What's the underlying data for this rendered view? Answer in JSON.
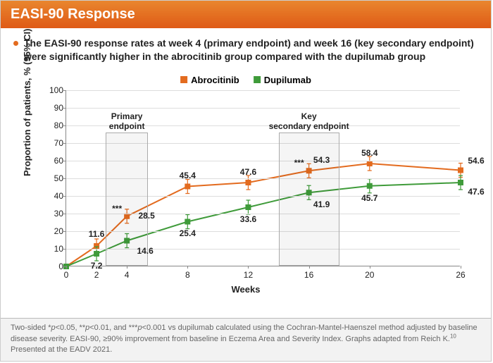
{
  "header": {
    "title": "EASI-90 Response"
  },
  "bullet": {
    "text": "The EASI-90 response rates at week 4 (primary endpoint) and week 16 (key secondary endpoint) were significantly higher in the abrocitinib group compared with the dupilumab group"
  },
  "legend": {
    "items": [
      {
        "label": "Abrocitinib",
        "color": "#e36b1f"
      },
      {
        "label": "Dupilumab",
        "color": "#3f9b3a"
      }
    ]
  },
  "chart": {
    "type": "line",
    "xlabel": "Weeks",
    "ylabel": "Proportion of patients, % (95% CI)",
    "ylim": [
      0,
      100
    ],
    "ytick_step": 10,
    "xticks": [
      0,
      2,
      4,
      8,
      12,
      16,
      20,
      26
    ],
    "xmin": 0,
    "xmax": 26,
    "background": "#ffffff",
    "grid_color": "#dddddd",
    "endpoint_boxes": [
      {
        "label": "Primary endpoint",
        "x_center": 4,
        "half_width": 1.4,
        "top_y": 76
      },
      {
        "label": "Key secondary endpoint",
        "x_center": 16,
        "half_width": 2.0,
        "top_y": 76
      }
    ],
    "series": [
      {
        "name": "Abrocitinib",
        "color": "#e36b1f",
        "marker": "square",
        "points": [
          {
            "x": 0,
            "y": 0.0
          },
          {
            "x": 2,
            "y": 11.6,
            "label": "11.6",
            "label_dy": -24
          },
          {
            "x": 4,
            "y": 28.5,
            "label": "28.5",
            "label_dx": 28,
            "label_dy": -8,
            "stars": "***"
          },
          {
            "x": 8,
            "y": 45.4,
            "label": "45.4",
            "label_dy": -22
          },
          {
            "x": 12,
            "y": 47.6,
            "label": "47.6",
            "label_dy": -22
          },
          {
            "x": 16,
            "y": 54.3,
            "label": "54.3",
            "label_dx": 18,
            "label_dy": -22,
            "stars": "***"
          },
          {
            "x": 20,
            "y": 58.4,
            "label": "58.4",
            "label_dy": -22
          },
          {
            "x": 26,
            "y": 54.6,
            "label": "54.6",
            "label_dx": 22,
            "label_dy": -20
          }
        ],
        "error": 4
      },
      {
        "name": "Dupilumab",
        "color": "#3f9b3a",
        "marker": "square",
        "points": [
          {
            "x": 0,
            "y": 0.0
          },
          {
            "x": 2,
            "y": 7.2,
            "label": "7.2",
            "label_dy": 10
          },
          {
            "x": 4,
            "y": 14.6,
            "label": "14.6",
            "label_dx": 26,
            "label_dy": 8
          },
          {
            "x": 8,
            "y": 25.4,
            "label": "25.4",
            "label_dy": 10
          },
          {
            "x": 12,
            "y": 33.6,
            "label": "33.6",
            "label_dy": 10
          },
          {
            "x": 16,
            "y": 41.9,
            "label": "41.9",
            "label_dx": 18,
            "label_dy": 10
          },
          {
            "x": 20,
            "y": 45.7,
            "label": "45.7",
            "label_dy": 10
          },
          {
            "x": 26,
            "y": 47.6,
            "label": "47.6",
            "label_dx": 22,
            "label_dy": 6
          }
        ],
        "error": 4
      }
    ]
  },
  "footnote": {
    "line1_a": "Two-sided *",
    "line1_b": "p",
    "line1_c": "<0.05, **",
    "line1_d": "p",
    "line1_e": "<0.01, and ***",
    "line1_f": "p",
    "line1_g": "<0.001 vs dupilumab calculated using the Cochran-Mantel-Haenszel method adjusted by baseline disease severity. EASI-90, ≥90% improvement from baseline in Eczema Area and Severity Index. Graphs adapted from Reich K.",
    "ref": "10",
    "line1_h": " Presented at the EADV 2021."
  }
}
